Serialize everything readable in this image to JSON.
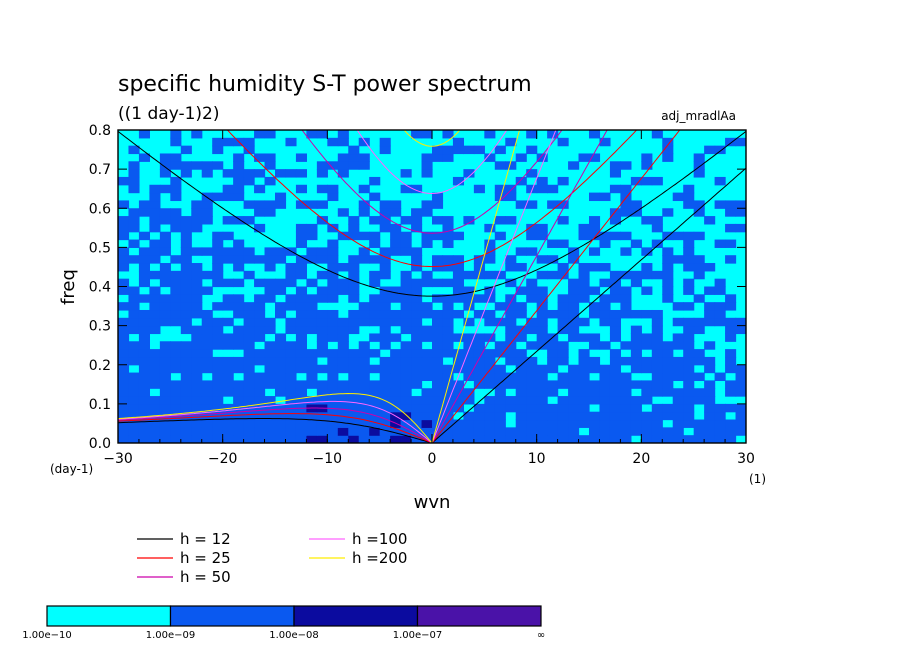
{
  "chart_data": {
    "type": "heatmap",
    "title": "specific humidity S-T power spectrum",
    "subtitle": "((1 day-1)2)",
    "label_right": "adj_mradlAa",
    "xlabel": "wvn",
    "ylabel": "freq",
    "x_unit": "(1)",
    "y_unit": "(day-1)",
    "xlim": [
      -30,
      30
    ],
    "ylim": [
      0.0,
      0.8
    ],
    "x_ticks": [
      "−30",
      "−20",
      "−10",
      "0",
      "10",
      "20",
      "30"
    ],
    "x_tick_values": [
      -30,
      -20,
      -10,
      0,
      10,
      20,
      30
    ],
    "y_ticks": [
      "0.0",
      "0.1",
      "0.2",
      "0.3",
      "0.4",
      "0.5",
      "0.6",
      "0.7",
      "0.8"
    ],
    "y_tick_values": [
      0.0,
      0.1,
      0.2,
      0.3,
      0.4,
      0.5,
      0.6,
      0.7,
      0.8
    ],
    "levels": [
      {
        "label": "1.00e−10",
        "color": "#00ffff"
      },
      {
        "label": "1.00e−09",
        "color": "#0a59f0"
      },
      {
        "label": "1.00e−08",
        "color": "#0b0b9f"
      },
      {
        "label": "1.00e−07",
        "color": "#4a12a8"
      },
      {
        "label": "∞",
        "color": "#4a12a8"
      }
    ],
    "series": [
      {
        "name": "h = 12",
        "value": 12,
        "color": "#000000"
      },
      {
        "name": "h = 25",
        "value": 25,
        "color": "#ff0000"
      },
      {
        "name": "h = 50",
        "value": 50,
        "color": "#cc00aa"
      },
      {
        "name": "h =100",
        "value": 100,
        "color": "#ff66ff"
      },
      {
        "name": "h =200",
        "value": 200,
        "color": "#ffee00"
      }
    ]
  }
}
